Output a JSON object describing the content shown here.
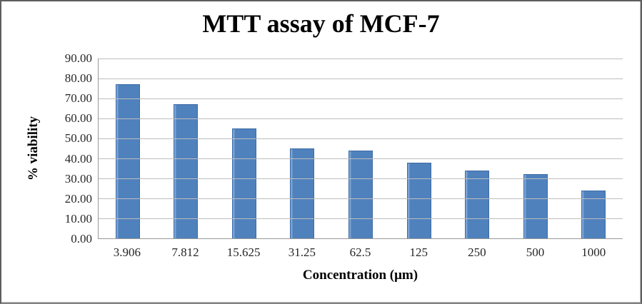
{
  "chart_data": {
    "type": "bar",
    "title": "MTT assay of MCF-7",
    "xlabel": "Concentration (μm)",
    "ylabel": "% viability",
    "categories": [
      "3.906",
      "7.812",
      "15.625",
      "31.25",
      "62.5",
      "125",
      "250",
      "500",
      "1000"
    ],
    "values": [
      77,
      67,
      55,
      45,
      44,
      38,
      34,
      32,
      24
    ],
    "ylim": [
      0,
      90
    ],
    "y_tick_step": 10,
    "y_tick_labels": [
      "0.00",
      "10.00",
      "20.00",
      "30.00",
      "40.00",
      "50.00",
      "60.00",
      "70.00",
      "80.00",
      "90.00"
    ],
    "grid": true,
    "legend": false,
    "colors": {
      "bar_fill": "#4f81bd",
      "bar_highlight": "#7aa2d4",
      "bar_border": "#3d6ba3",
      "gridline": "#bdbdbd",
      "axis_line": "#999999",
      "text": "#262626",
      "frame_border": "#5e5e5e"
    }
  }
}
